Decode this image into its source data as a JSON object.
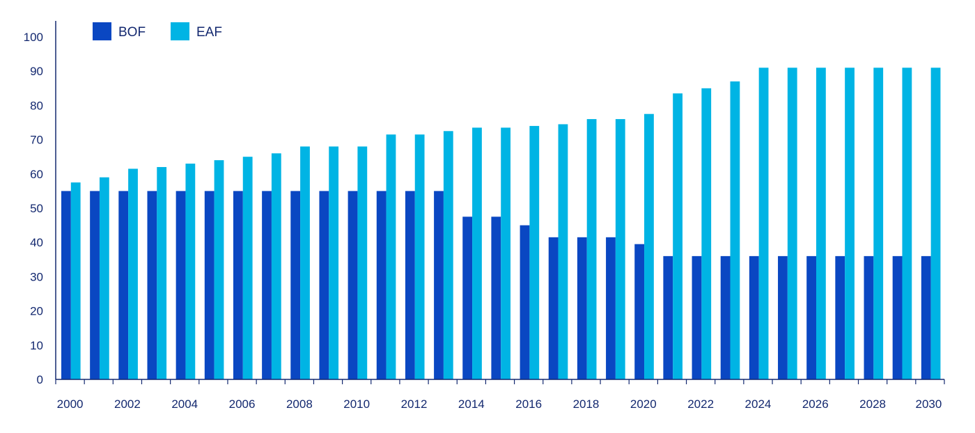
{
  "chart_data": {
    "type": "bar",
    "title": "",
    "xlabel": "",
    "ylabel": "",
    "categories": [
      "2000",
      "2001",
      "2002",
      "2003",
      "2004",
      "2005",
      "2006",
      "2007",
      "2008",
      "2009",
      "2010",
      "2011",
      "2012",
      "2013",
      "2014",
      "2015",
      "2016",
      "2017",
      "2018",
      "2019",
      "2020",
      "2021",
      "2022",
      "2023",
      "2024",
      "2025",
      "2026",
      "2027",
      "2028",
      "2029",
      "2030"
    ],
    "x_tick_labels": [
      "2000",
      "2002",
      "2004",
      "2006",
      "2008",
      "2010",
      "2012",
      "2014",
      "2016",
      "2018",
      "2020",
      "2022",
      "2024",
      "2026",
      "2028",
      "2030"
    ],
    "ylim": [
      0,
      100
    ],
    "y_ticks": [
      0,
      10,
      20,
      30,
      40,
      50,
      60,
      70,
      80,
      90,
      100
    ],
    "grid": false,
    "legend_position": "top-left",
    "series": [
      {
        "name": "BOF",
        "color": "#0a47c2",
        "values": [
          55,
          55,
          55,
          55,
          55,
          55,
          55,
          55,
          55,
          55,
          55,
          55,
          55,
          55,
          47.5,
          47.5,
          45,
          41.5,
          41.5,
          41.5,
          39.5,
          36,
          36,
          36,
          36,
          36,
          36,
          36,
          36,
          36,
          36
        ]
      },
      {
        "name": "EAF",
        "color": "#00b4e4",
        "values": [
          57.5,
          59,
          61.5,
          62,
          63,
          64,
          65,
          66,
          68,
          68,
          68,
          71.5,
          71.5,
          72.5,
          73.5,
          73.5,
          74,
          74.5,
          76,
          76,
          77.5,
          83.5,
          85,
          87,
          91,
          91,
          91,
          91,
          91,
          91,
          91
        ]
      }
    ]
  },
  "colors": {
    "axis": "#13286f",
    "text": "#13286f"
  }
}
